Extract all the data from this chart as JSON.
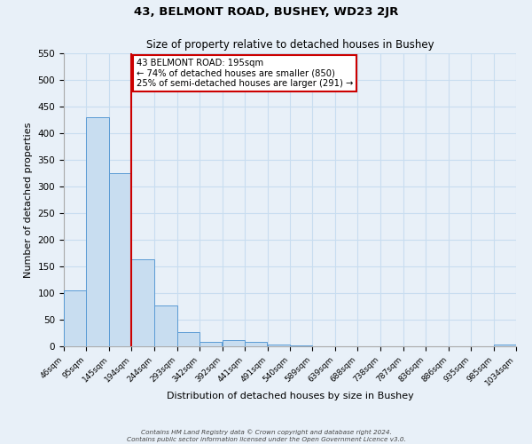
{
  "title": "43, BELMONT ROAD, BUSHEY, WD23 2JR",
  "subtitle": "Size of property relative to detached houses in Bushey",
  "xlabel": "Distribution of detached houses by size in Bushey",
  "ylabel": "Number of detached properties",
  "bin_edges": [
    46,
    95,
    145,
    194,
    244,
    293,
    342,
    392,
    441,
    491,
    540,
    589,
    639,
    688,
    738,
    787,
    836,
    886,
    935,
    985,
    1034
  ],
  "bar_heights": [
    105,
    430,
    325,
    163,
    76,
    27,
    9,
    12,
    9,
    4,
    1,
    0,
    0,
    0,
    0,
    0,
    0,
    0,
    0,
    4
  ],
  "bar_color": "#c8ddf0",
  "bar_edge_color": "#5b9bd5",
  "red_line_x": 194,
  "annotation_title": "43 BELMONT ROAD: 195sqm",
  "annotation_line1": "← 74% of detached houses are smaller (850)",
  "annotation_line2": "25% of semi-detached houses are larger (291) →",
  "annotation_box_color": "#ffffff",
  "annotation_box_edge_color": "#cc0000",
  "red_line_color": "#cc0000",
  "ylim": [
    0,
    550
  ],
  "yticks": [
    0,
    50,
    100,
    150,
    200,
    250,
    300,
    350,
    400,
    450,
    500,
    550
  ],
  "grid_color": "#c8ddf0",
  "background_color": "#e8f0f8",
  "footer_line1": "Contains HM Land Registry data © Crown copyright and database right 2024.",
  "footer_line2": "Contains public sector information licensed under the Open Government Licence v3.0."
}
